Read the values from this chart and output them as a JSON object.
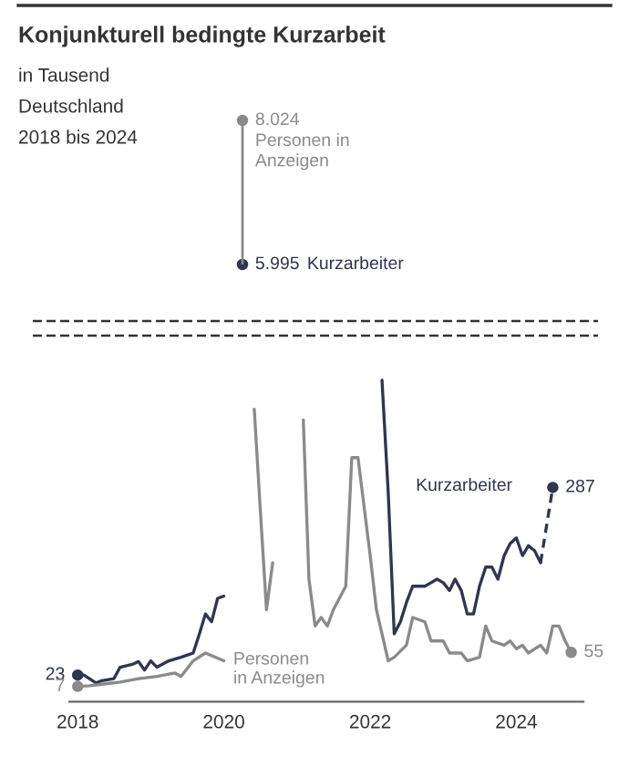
{
  "chart_data": [
    {
      "type": "other",
      "title": "Konjunkturell bedingte Kurzarbeit",
      "subtitle": "in Tausend",
      "annotations": [
        "Deutschland",
        "2018 bis 2024"
      ],
      "categories": [
        null
      ],
      "series": [
        {
          "name": "Personen in\nAnzeigen",
          "color": "#8a8a8a",
          "values": [
            8024
          ],
          "value_labels": [
            "8.024"
          ]
        },
        {
          "name": "Kurzarbeiter",
          "color": "#2e3650",
          "values": [
            5995
          ],
          "value_labels": [
            "5.995"
          ]
        }
      ]
    },
    {
      "type": "line",
      "xlim": [
        "2017-11-20",
        "2024-12-01"
      ],
      "xticks": [
        "2018",
        "2020",
        "2022",
        "2024"
      ],
      "tick_labels": "x",
      "annotations": [
        "Kurzarbeiter",
        "Personen\nin Anzeigen"
      ],
      "series": [
        {
          "color": "#2e3650",
          "x": [
            "2018-01",
            "2018-02",
            "2018-04",
            "2018-05",
            "2018-07",
            "2018-08",
            "2018-10",
            "2018-11",
            "2018-12",
            "2019-01",
            "2019-02",
            "2019-04",
            "2019-06",
            "2019-07",
            "2019-08",
            "2019-09",
            "2019-10",
            "2019-11",
            "2019-12",
            "2020-01",
            "2020-02",
            "2022-03",
            "2022-04",
            "2022-05",
            "2022-06",
            "2022-07",
            "2022-08",
            "2022-10",
            "2022-11",
            "2022-12",
            "2023-01",
            "2023-02",
            "2023-03",
            "2023-04",
            "2023-05",
            "2023-06",
            "2023-07",
            "2023-08",
            "2023-09",
            "2023-10",
            "2023-11",
            "2023-12",
            "2024-01",
            "2024-02",
            "2024-03",
            "2024-04",
            "2024-05"
          ],
          "values": [
            23,
            23,
            12,
            15,
            18,
            34,
            38,
            42,
            30,
            43,
            34,
            43,
            48,
            51,
            54,
            81,
            109,
            98,
            131,
            134,
            null,
            438,
            280,
            81,
            98,
            125,
            148,
            148,
            153,
            158,
            153,
            142,
            158,
            142,
            109,
            109,
            148,
            175,
            175,
            158,
            191,
            208,
            216,
            191,
            205,
            198,
            181
          ],
          "value_labels": [
            "23",
            null,
            null,
            null,
            null,
            null,
            null,
            null,
            null,
            null,
            null,
            null,
            null,
            null,
            null,
            null,
            null,
            null,
            null,
            null,
            null,
            null,
            null,
            null,
            null,
            null,
            null,
            null,
            null,
            null,
            null,
            null,
            null,
            null,
            null,
            null,
            null,
            null,
            null,
            null,
            null,
            null,
            null,
            null,
            null,
            null,
            null
          ]
        },
        {
          "color": "#8a8a8a",
          "x": [
            "2018-01",
            "2018-03",
            "2018-05",
            "2018-08",
            "2018-11",
            "2019-02",
            "2019-05",
            "2019-06",
            "2019-08",
            "2019-10",
            "2020-01",
            "2020-02",
            "2020-06",
            "2020-07",
            "2020-08",
            "2020-09",
            "2020-10",
            "2021-02",
            "2021-03",
            "2021-04",
            "2021-05",
            "2021-06",
            "2021-07",
            "2021-09",
            "2021-10",
            "2021-11",
            "2022-01",
            "2022-02",
            "2022-04",
            "2022-05",
            "2022-07",
            "2022-08",
            "2022-10",
            "2022-11",
            "2023-01",
            "2023-02",
            "2023-04",
            "2023-05",
            "2023-07",
            "2023-08",
            "2023-09",
            "2023-11",
            "2023-12",
            "2024-01",
            "2024-02",
            "2024-03",
            "2024-05",
            "2024-06",
            "2024-07",
            "2024-08",
            "2024-09",
            "2024-10"
          ],
          "values": [
            7,
            8,
            10,
            13,
            18,
            21,
            26,
            21,
            43,
            54,
            43,
            null,
            397,
            256,
            115,
            181,
            null,
            382,
            158,
            92,
            104,
            92,
            115,
            148,
            329,
            329,
            191,
            115,
            43,
            48,
            65,
            104,
            98,
            71,
            71,
            54,
            54,
            43,
            48,
            92,
            71,
            65,
            71,
            60,
            65,
            54,
            65,
            54,
            92,
            92,
            71,
            55
          ],
          "value_labels": [
            "7",
            null,
            null,
            null,
            null,
            null,
            null,
            null,
            null,
            null,
            null,
            null,
            null,
            null,
            null,
            null,
            null,
            null,
            null,
            null,
            null,
            null,
            null,
            null,
            null,
            null,
            null,
            null,
            null,
            null,
            null,
            null,
            null,
            null,
            null,
            null,
            null,
            null,
            null,
            null,
            null,
            null,
            null,
            null,
            null,
            null,
            null,
            null,
            null,
            null,
            null,
            "55"
          ]
        },
        {
          "color": "#2e3650",
          "line_style": "dashed",
          "x": [
            "2024-05",
            "2024-07"
          ],
          "values": [
            181,
            287
          ],
          "value_labels": [
            null,
            "287"
          ]
        }
      ]
    }
  ]
}
